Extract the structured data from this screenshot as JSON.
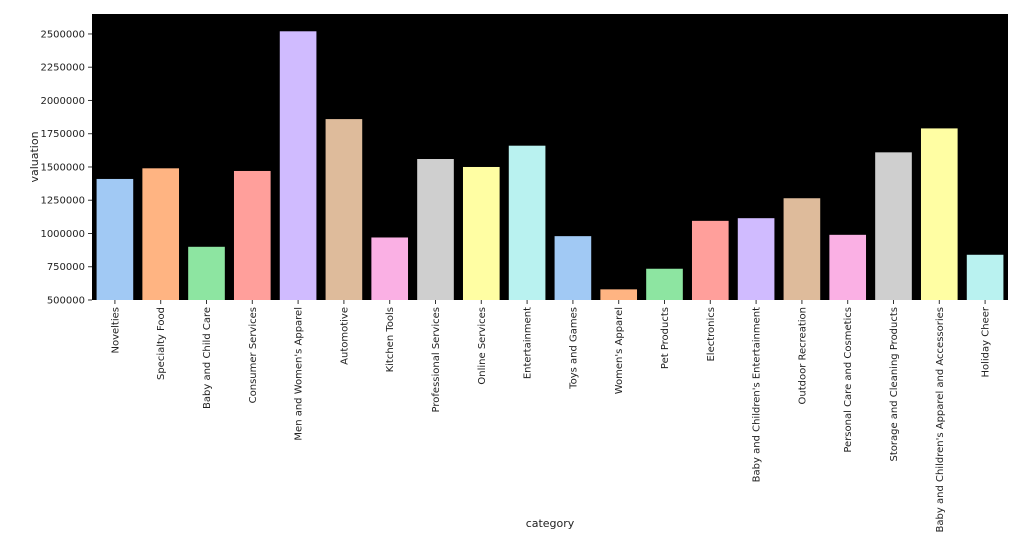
{
  "chart_data": {
    "type": "bar",
    "xlabel": "category",
    "ylabel": "valuation",
    "ylim": [
      500000,
      2650000
    ],
    "yticks": [
      500000,
      750000,
      1000000,
      1250000,
      1500000,
      1750000,
      2000000,
      2250000,
      2500000
    ],
    "ytick_labels": [
      "500000",
      "750000",
      "1000000",
      "1250000",
      "1500000",
      "1750000",
      "2000000",
      "2250000",
      "2500000"
    ],
    "background": "#000000",
    "grid": false,
    "categories": [
      "Novelties",
      "Specialty Food",
      "Baby and Child Care",
      "Consumer Services",
      "Men and Women's Apparel",
      "Automotive",
      "Kitchen Tools",
      "Professional Services",
      "Online Services",
      "Entertainment",
      "Toys and Games",
      "Women's Apparel",
      "Pet Products",
      "Electronics",
      "Baby and Children's Entertainment",
      "Outdoor Recreation",
      "Personal Care and Cosmetics",
      "Storage and Cleaning Products",
      "Baby and Children's Apparel and Accessories",
      "Holiday Cheer"
    ],
    "values": [
      1410000,
      1490000,
      900000,
      1470000,
      2520000,
      1860000,
      970000,
      1560000,
      1500000,
      1660000,
      980000,
      580000,
      735000,
      1095000,
      1115000,
      1265000,
      990000,
      1610000,
      1790000,
      840000
    ],
    "colors": [
      "#a1c9f4",
      "#ffb482",
      "#8de5a1",
      "#ff9f9b",
      "#d0bbff",
      "#debb9b",
      "#fab0e4",
      "#cfcfcf",
      "#fffea3",
      "#b9f2f0",
      "#a1c9f4",
      "#ffb482",
      "#8de5a1",
      "#ff9f9b",
      "#d0bbff",
      "#debb9b",
      "#fab0e4",
      "#cfcfcf",
      "#fffea3",
      "#b9f2f0"
    ]
  }
}
